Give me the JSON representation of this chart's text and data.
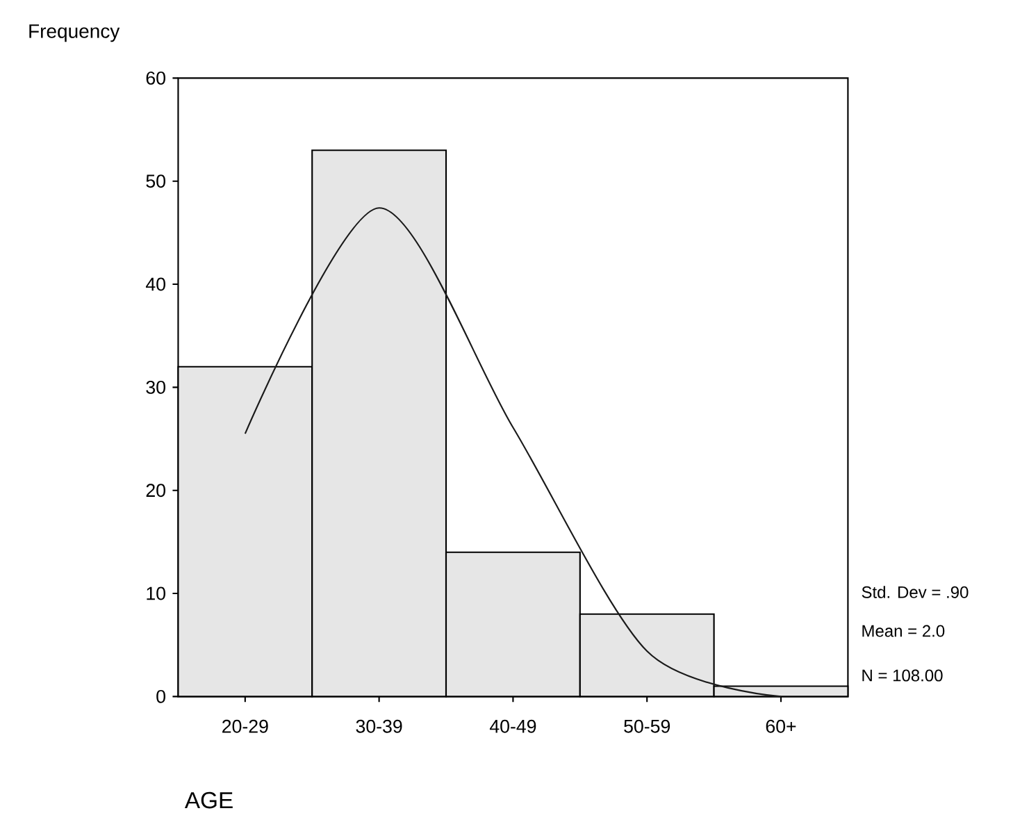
{
  "chart_data": {
    "type": "bar",
    "xlabel": "AGE",
    "ylabel": "Frequency",
    "categories": [
      "20-29",
      "30-39",
      "40-49",
      "50-59",
      "60+"
    ],
    "series": [
      {
        "color": "#e6e6e6",
        "values": [
          32,
          53,
          14,
          8,
          1
        ]
      },
      {
        "type": "line",
        "color": "#1a1a1a",
        "values": [
          25.5,
          47.4,
          26.1,
          4.4,
          0
        ]
      }
    ],
    "ylim": [
      0,
      60
    ],
    "yticks": [
      0,
      10,
      20,
      30,
      40,
      50,
      60
    ],
    "annotations": [
      "Std. Dev = .90",
      "Mean = 2.0",
      "N = 108.00"
    ]
  }
}
